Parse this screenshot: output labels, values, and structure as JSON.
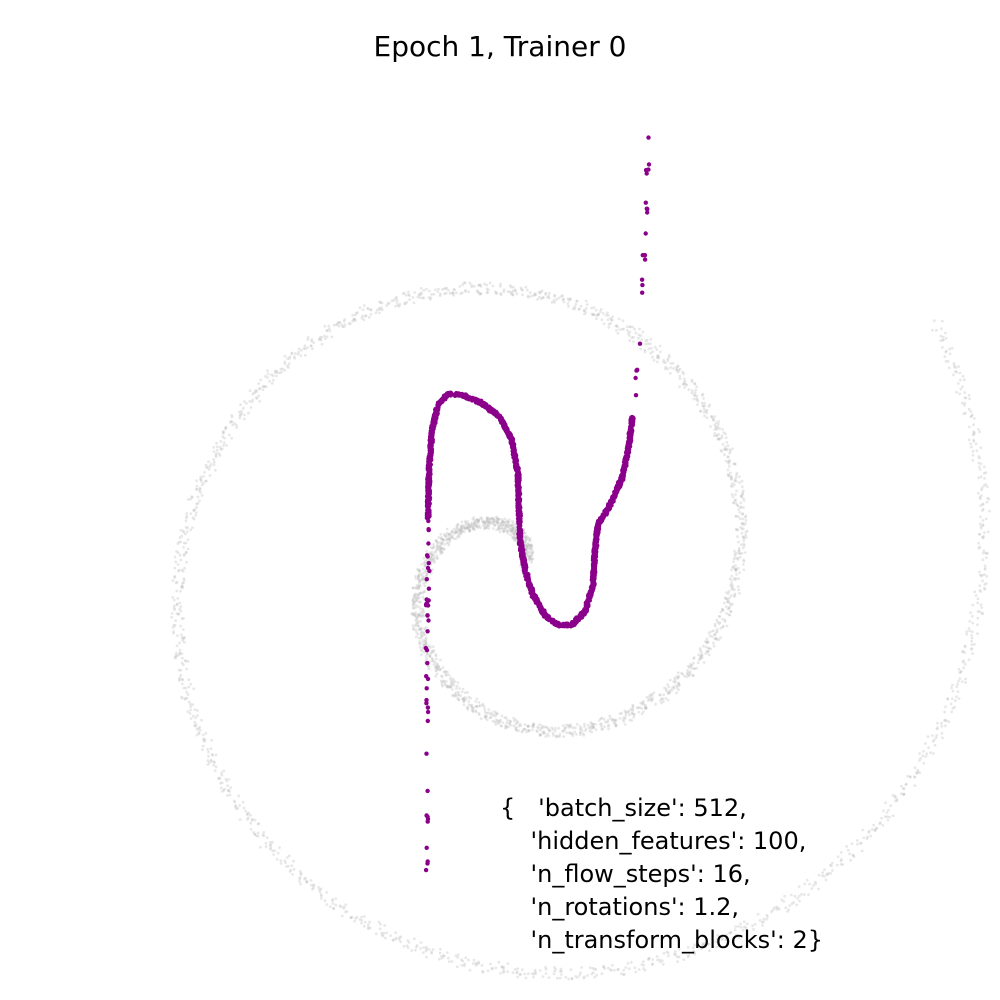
{
  "chart_data": {
    "type": "scatter",
    "title": "Epoch 1, Trainer 0",
    "xlabel": "",
    "ylabel": "",
    "axes_visible": false,
    "grid": false,
    "xlim": [
      -3.0,
      3.0
    ],
    "ylim": [
      -3.0,
      3.0
    ],
    "series": [
      {
        "role": "target",
        "color": "#bdbdbd",
        "spiral": {
          "center": [
            0.2,
            -0.3
          ],
          "b": 0.39,
          "theta_range": [
            0.3,
            12.4
          ],
          "start_angle": 0.7
        }
      },
      {
        "role": "model",
        "color": "#8b008b",
        "curve": [
          [
            -0.73,
            -3.4
          ],
          [
            -0.73,
            -3.1
          ],
          [
            -0.72,
            -2.6
          ],
          [
            -0.72,
            -2.1
          ],
          [
            -0.73,
            -1.6
          ],
          [
            -0.73,
            -1.0
          ],
          [
            -0.72,
            -0.4
          ],
          [
            -0.72,
            0.2
          ],
          [
            -0.71,
            0.7
          ],
          [
            -0.68,
            1.1
          ],
          [
            -0.62,
            1.35
          ],
          [
            -0.52,
            1.46
          ],
          [
            -0.38,
            1.45
          ],
          [
            -0.2,
            1.38
          ],
          [
            0.0,
            1.23
          ],
          [
            0.12,
            1.0
          ],
          [
            0.18,
            0.65
          ],
          [
            0.19,
            0.3
          ],
          [
            0.2,
            0.0
          ],
          [
            0.25,
            -0.3
          ],
          [
            0.33,
            -0.55
          ],
          [
            0.45,
            -0.75
          ],
          [
            0.58,
            -0.85
          ],
          [
            0.72,
            -0.85
          ],
          [
            0.85,
            -0.72
          ],
          [
            0.93,
            -0.45
          ],
          [
            0.95,
            -0.1
          ],
          [
            0.98,
            0.15
          ],
          [
            1.1,
            0.35
          ],
          [
            1.22,
            0.62
          ],
          [
            1.29,
            0.95
          ],
          [
            1.33,
            1.3
          ],
          [
            1.38,
            1.7
          ],
          [
            1.41,
            2.2
          ],
          [
            1.44,
            2.8
          ],
          [
            1.46,
            3.3
          ],
          [
            1.48,
            3.8
          ],
          [
            1.49,
            4.05
          ]
        ]
      }
    ]
  },
  "params": {
    "lines": [
      "{   'batch_size': 512,",
      "    'hidden_features': 100,",
      "    'n_flow_steps': 16,",
      "    'n_rotations': 1.2,",
      "    'n_transform_blocks': 2}"
    ]
  }
}
